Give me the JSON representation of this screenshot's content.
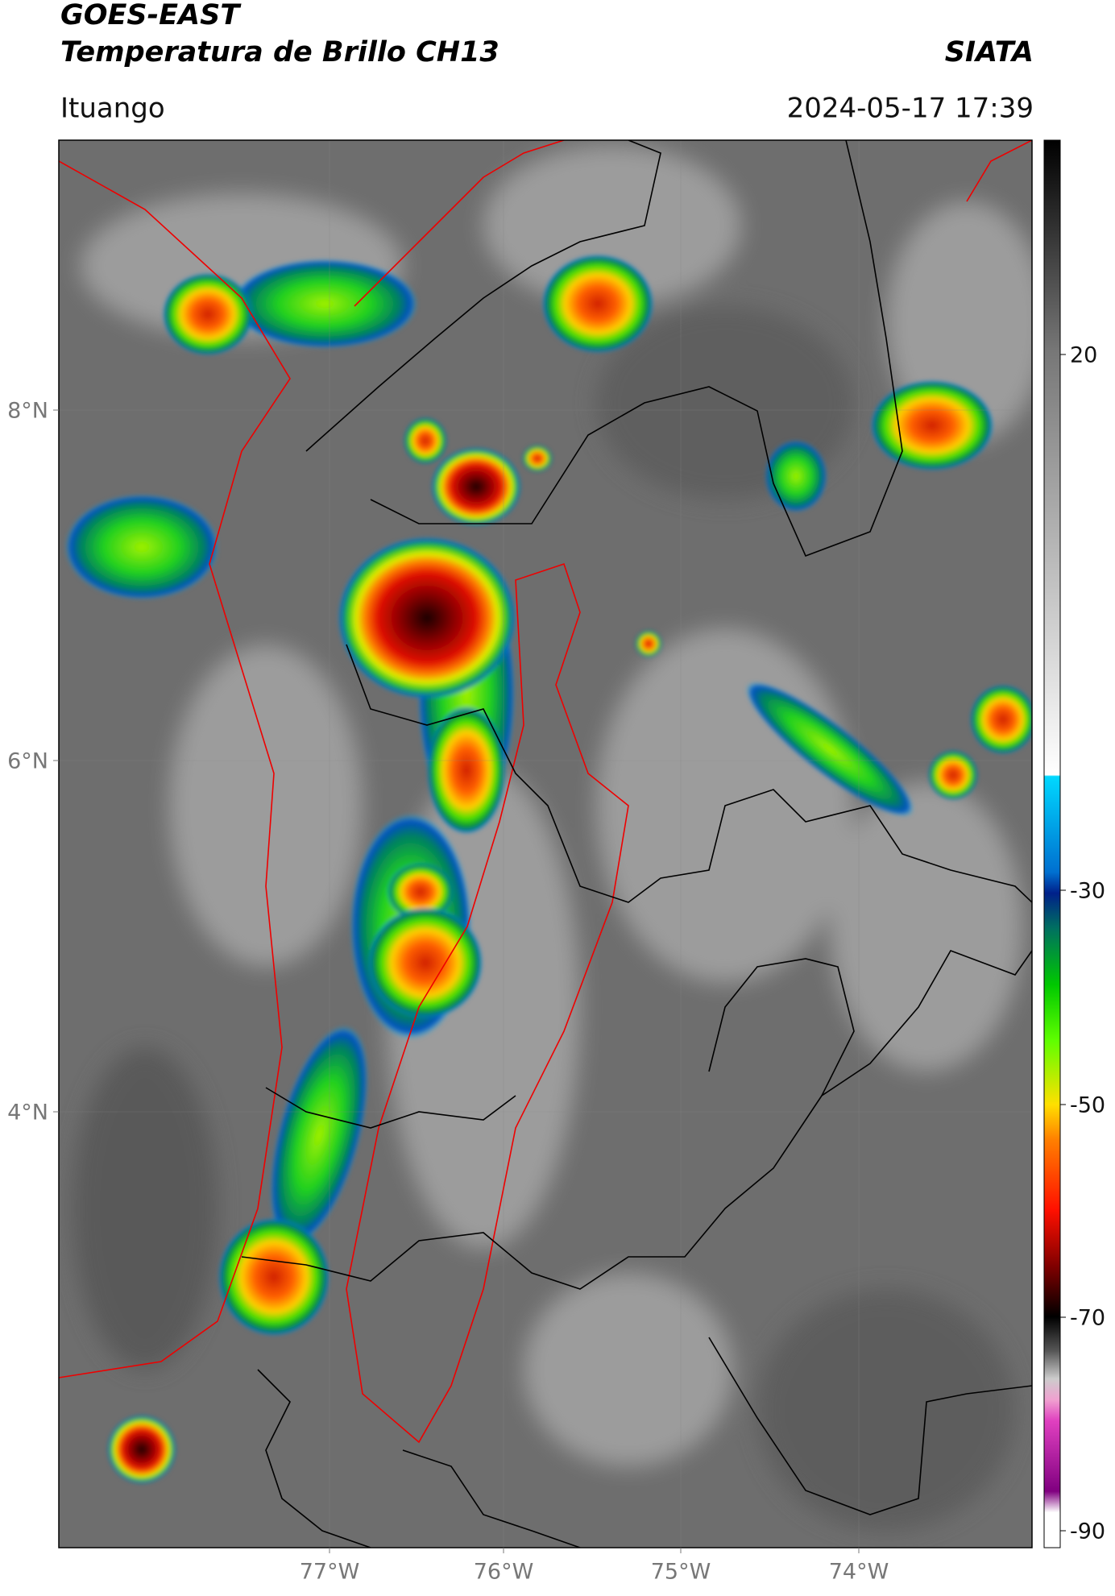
{
  "header": {
    "satellite": "GOES-EAST",
    "product": "Temperatura de Brillo CH13",
    "agency": "SIATA",
    "location": "Ituango",
    "datetime": "2024-05-17 17:39"
  },
  "map": {
    "lat_labels": [
      "8°N",
      "6°N",
      "4°N"
    ],
    "lon_labels": [
      "77°W",
      "76°W",
      "75°W",
      "74°W"
    ]
  },
  "colorbar": {
    "ticks": [
      20,
      -30,
      -50,
      -70,
      -90
    ]
  }
}
